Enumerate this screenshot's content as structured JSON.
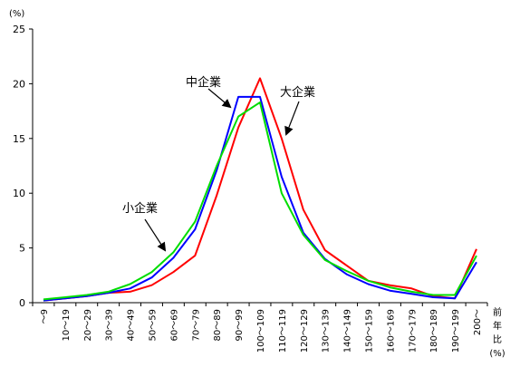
{
  "chart_data": {
    "type": "line",
    "y_unit": "(%)",
    "ylim": [
      0,
      25
    ],
    "yticks": [
      "0",
      "5",
      "10",
      "15",
      "20",
      "25"
    ],
    "categories": [
      "～9",
      "10～19",
      "20～29",
      "30～39",
      "40～49",
      "50～59",
      "60～69",
      "70～79",
      "80～89",
      "90～99",
      "100～109",
      "110～119",
      "120～129",
      "130～139",
      "140～149",
      "150～159",
      "160～169",
      "170～179",
      "180～189",
      "190～199",
      "200～"
    ],
    "x_end_label": "前年比(%)",
    "x_end_chars": [
      "前",
      "年",
      "比",
      "(%)"
    ],
    "grid": false,
    "series": [
      {
        "name": "大企業",
        "color": "#ff0000",
        "values": [
          0.2,
          0.4,
          0.6,
          0.9,
          1.0,
          1.6,
          2.8,
          4.3,
          9.8,
          16.0,
          20.5,
          15.0,
          8.5,
          4.8,
          3.4,
          2.0,
          1.6,
          1.3,
          0.6,
          0.4,
          4.9
        ]
      },
      {
        "name": "中企業",
        "color": "#0000ff",
        "values": [
          0.2,
          0.4,
          0.6,
          0.9,
          1.3,
          2.3,
          4.1,
          6.7,
          12.1,
          18.8,
          18.8,
          11.5,
          6.4,
          4.0,
          2.6,
          1.7,
          1.1,
          0.8,
          0.5,
          0.4,
          3.7
        ]
      },
      {
        "name": "小企業",
        "color": "#00dd00",
        "values": [
          0.3,
          0.5,
          0.7,
          1.0,
          1.7,
          2.8,
          4.6,
          7.4,
          12.5,
          17.0,
          18.3,
          10.0,
          6.2,
          3.9,
          2.9,
          2.0,
          1.4,
          1.0,
          0.7,
          0.7,
          4.3
        ]
      }
    ],
    "annotations": [
      {
        "text": "中企業",
        "target_series": "中企業"
      },
      {
        "text": "大企業",
        "target_series": "大企業"
      },
      {
        "text": "小企業",
        "target_series": "小企業"
      }
    ]
  }
}
